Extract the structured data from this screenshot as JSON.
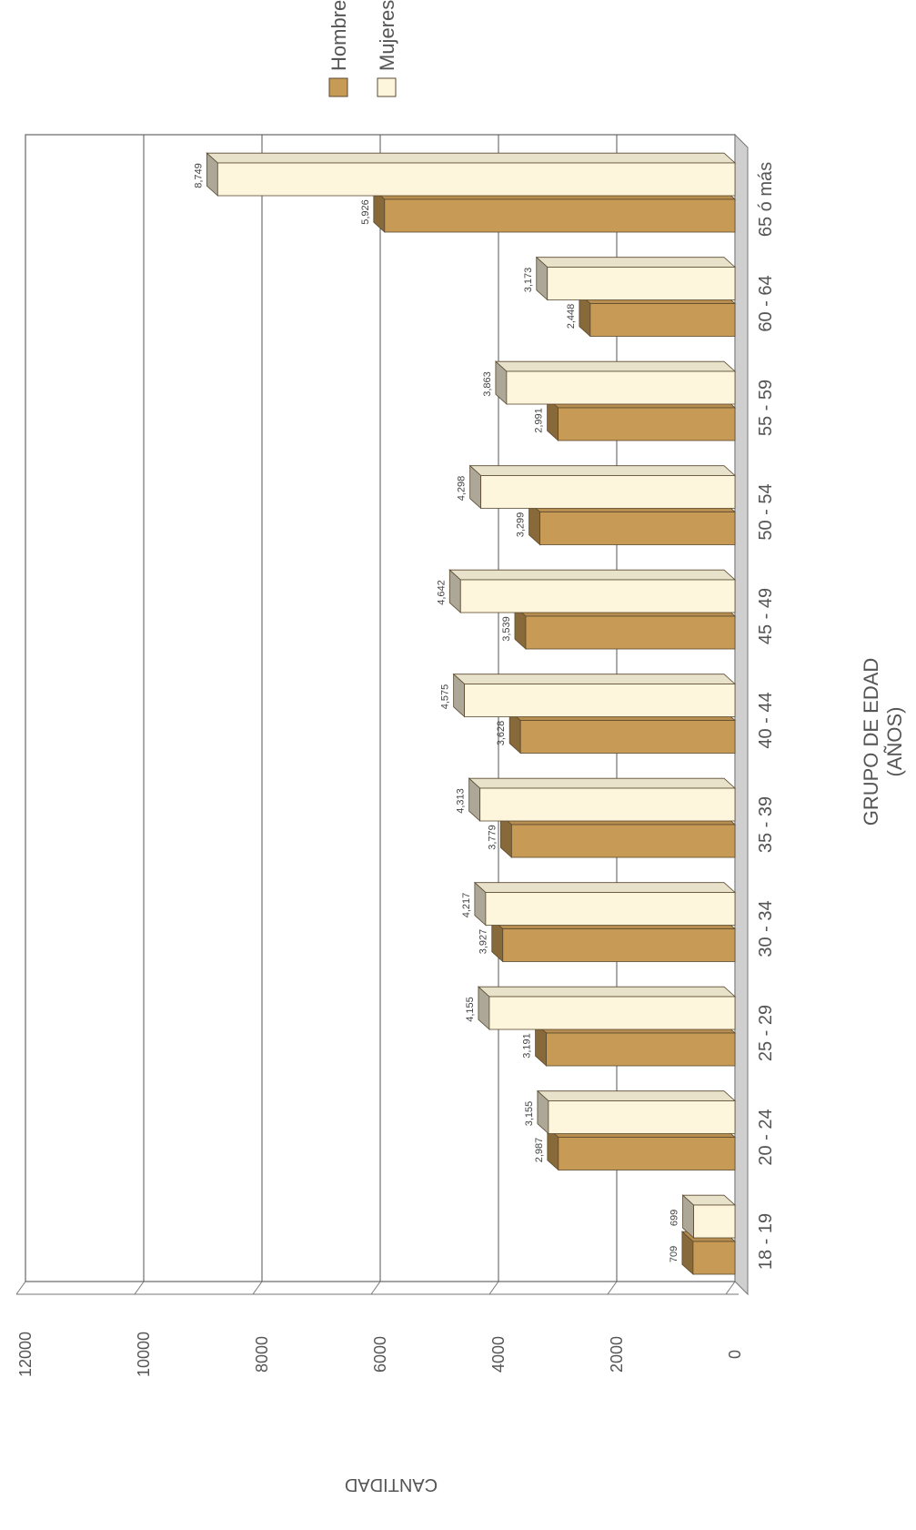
{
  "chart_data": {
    "type": "bar",
    "orientation": "horizontal-3d",
    "title": "",
    "xlabel": "GRUPO DE EDAD",
    "xlabel_sub": "(AÑOS)",
    "ylabel": "CANTIDAD",
    "ylim": [
      0,
      12000
    ],
    "yticks": [
      0,
      2000,
      4000,
      6000,
      8000,
      10000,
      12000
    ],
    "yticks_text": [
      "0",
      "2000",
      "4000",
      "6000",
      "8000",
      "10000",
      "12000"
    ],
    "grid": true,
    "legend_position": "top-right",
    "categories": [
      "18 - 19",
      "20 - 24",
      "25 - 29",
      "30 - 34",
      "35 - 39",
      "40 - 44",
      "45 - 49",
      "50 - 54",
      "55 - 59",
      "60 - 64",
      "65 ó más"
    ],
    "series": [
      {
        "name": "Hombres",
        "color": "#c79a56",
        "values": [
          709,
          2987,
          3191,
          3927,
          3779,
          3628,
          3539,
          3299,
          2991,
          2448,
          5926
        ],
        "labels": [
          "709",
          "2,987",
          "3,191",
          "3,927",
          "3,779",
          "3,628",
          "3,539",
          "3,299",
          "2,991",
          "2,448",
          "5,926"
        ]
      },
      {
        "name": "Mujeres",
        "color": "#fdf6dc",
        "values": [
          699,
          3155,
          4155,
          4217,
          4313,
          4575,
          4642,
          4298,
          3863,
          3173,
          8749
        ],
        "labels": [
          "699",
          "3,155",
          "4,155",
          "4,217",
          "4,313",
          "4,575",
          "4,642",
          "4,298",
          "3,863",
          "3,173",
          "8,749"
        ]
      }
    ]
  }
}
